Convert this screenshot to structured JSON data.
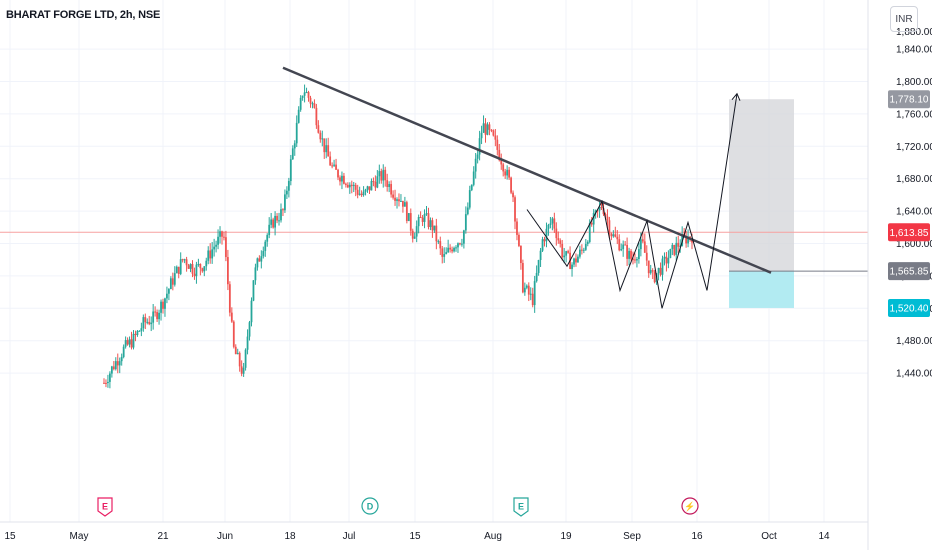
{
  "header": {
    "symbol_line": "BHARAT FORGE LTD, 2h, NSE",
    "currency": "INR"
  },
  "colors": {
    "up": "#26a69a",
    "down": "#ef5350",
    "trendline": "#434651",
    "target_zone": "#d6d7db",
    "stop_zone": "#b2ebf2",
    "current_line": "#f7a1a0"
  },
  "chart_data": {
    "type": "candlestick",
    "y_axis": {
      "ticks": [
        1440,
        1480,
        1520,
        1560,
        1600,
        1640,
        1680,
        1720,
        1760,
        1800,
        1840
      ],
      "tick_labels": [
        "1,440.00",
        "1,480.00",
        "1,520.00",
        "1,560.00",
        "1,600.00",
        "1,640.00",
        "1,680.00",
        "1,720.00",
        "1,760.00",
        "1,800.00",
        "1,840.00"
      ],
      "range": [
        1410,
        1885
      ]
    },
    "x_axis": {
      "tick_labels": [
        "15",
        "May",
        "21",
        "Jun",
        "18",
        "Jul",
        "15",
        "Aug",
        "19",
        "Sep",
        "16",
        "Oct",
        "14"
      ]
    },
    "price_badges": [
      {
        "value": 1778.1,
        "label": "1,778.10",
        "color": "#9598a1"
      },
      {
        "value": 1613.85,
        "label": "1,613.85",
        "color": "#f23645"
      },
      {
        "value": 1565.85,
        "label": "1,565.85",
        "color": "#787b86"
      },
      {
        "value": 1520.4,
        "label": "1,520.40",
        "color": "#00bcd4"
      }
    ],
    "current_price": 1613.85,
    "position": {
      "entry": 1565.85,
      "target": 1778.1,
      "stop": 1520.4
    },
    "event_markers": [
      {
        "symbol": "E",
        "color": "#e91e63"
      },
      {
        "symbol": "D",
        "color": "#26a69a"
      },
      {
        "symbol": "E",
        "color": "#26a69a"
      },
      {
        "symbol": "⚡",
        "color": "#c2185b"
      }
    ],
    "trendline": [
      [
        1,
        1817
      ],
      [
        2,
        1564
      ]
    ],
    "candles_close_series": [
      1428,
      1450,
      1470,
      1482,
      1502,
      1508,
      1530,
      1558,
      1582,
      1568,
      1574,
      1596,
      1612,
      1470,
      1438,
      1558,
      1600,
      1628,
      1640,
      1720,
      1792,
      1770,
      1722,
      1690,
      1682,
      1670,
      1658,
      1676,
      1684,
      1664,
      1652,
      1612,
      1634,
      1620,
      1580,
      1598,
      1608,
      1680,
      1746,
      1730,
      1700,
      1664,
      1548,
      1530,
      1604,
      1630,
      1588,
      1574,
      1592,
      1626,
      1648,
      1610,
      1596,
      1580,
      1600,
      1556,
      1572,
      1590,
      1604,
      1610
    ]
  }
}
